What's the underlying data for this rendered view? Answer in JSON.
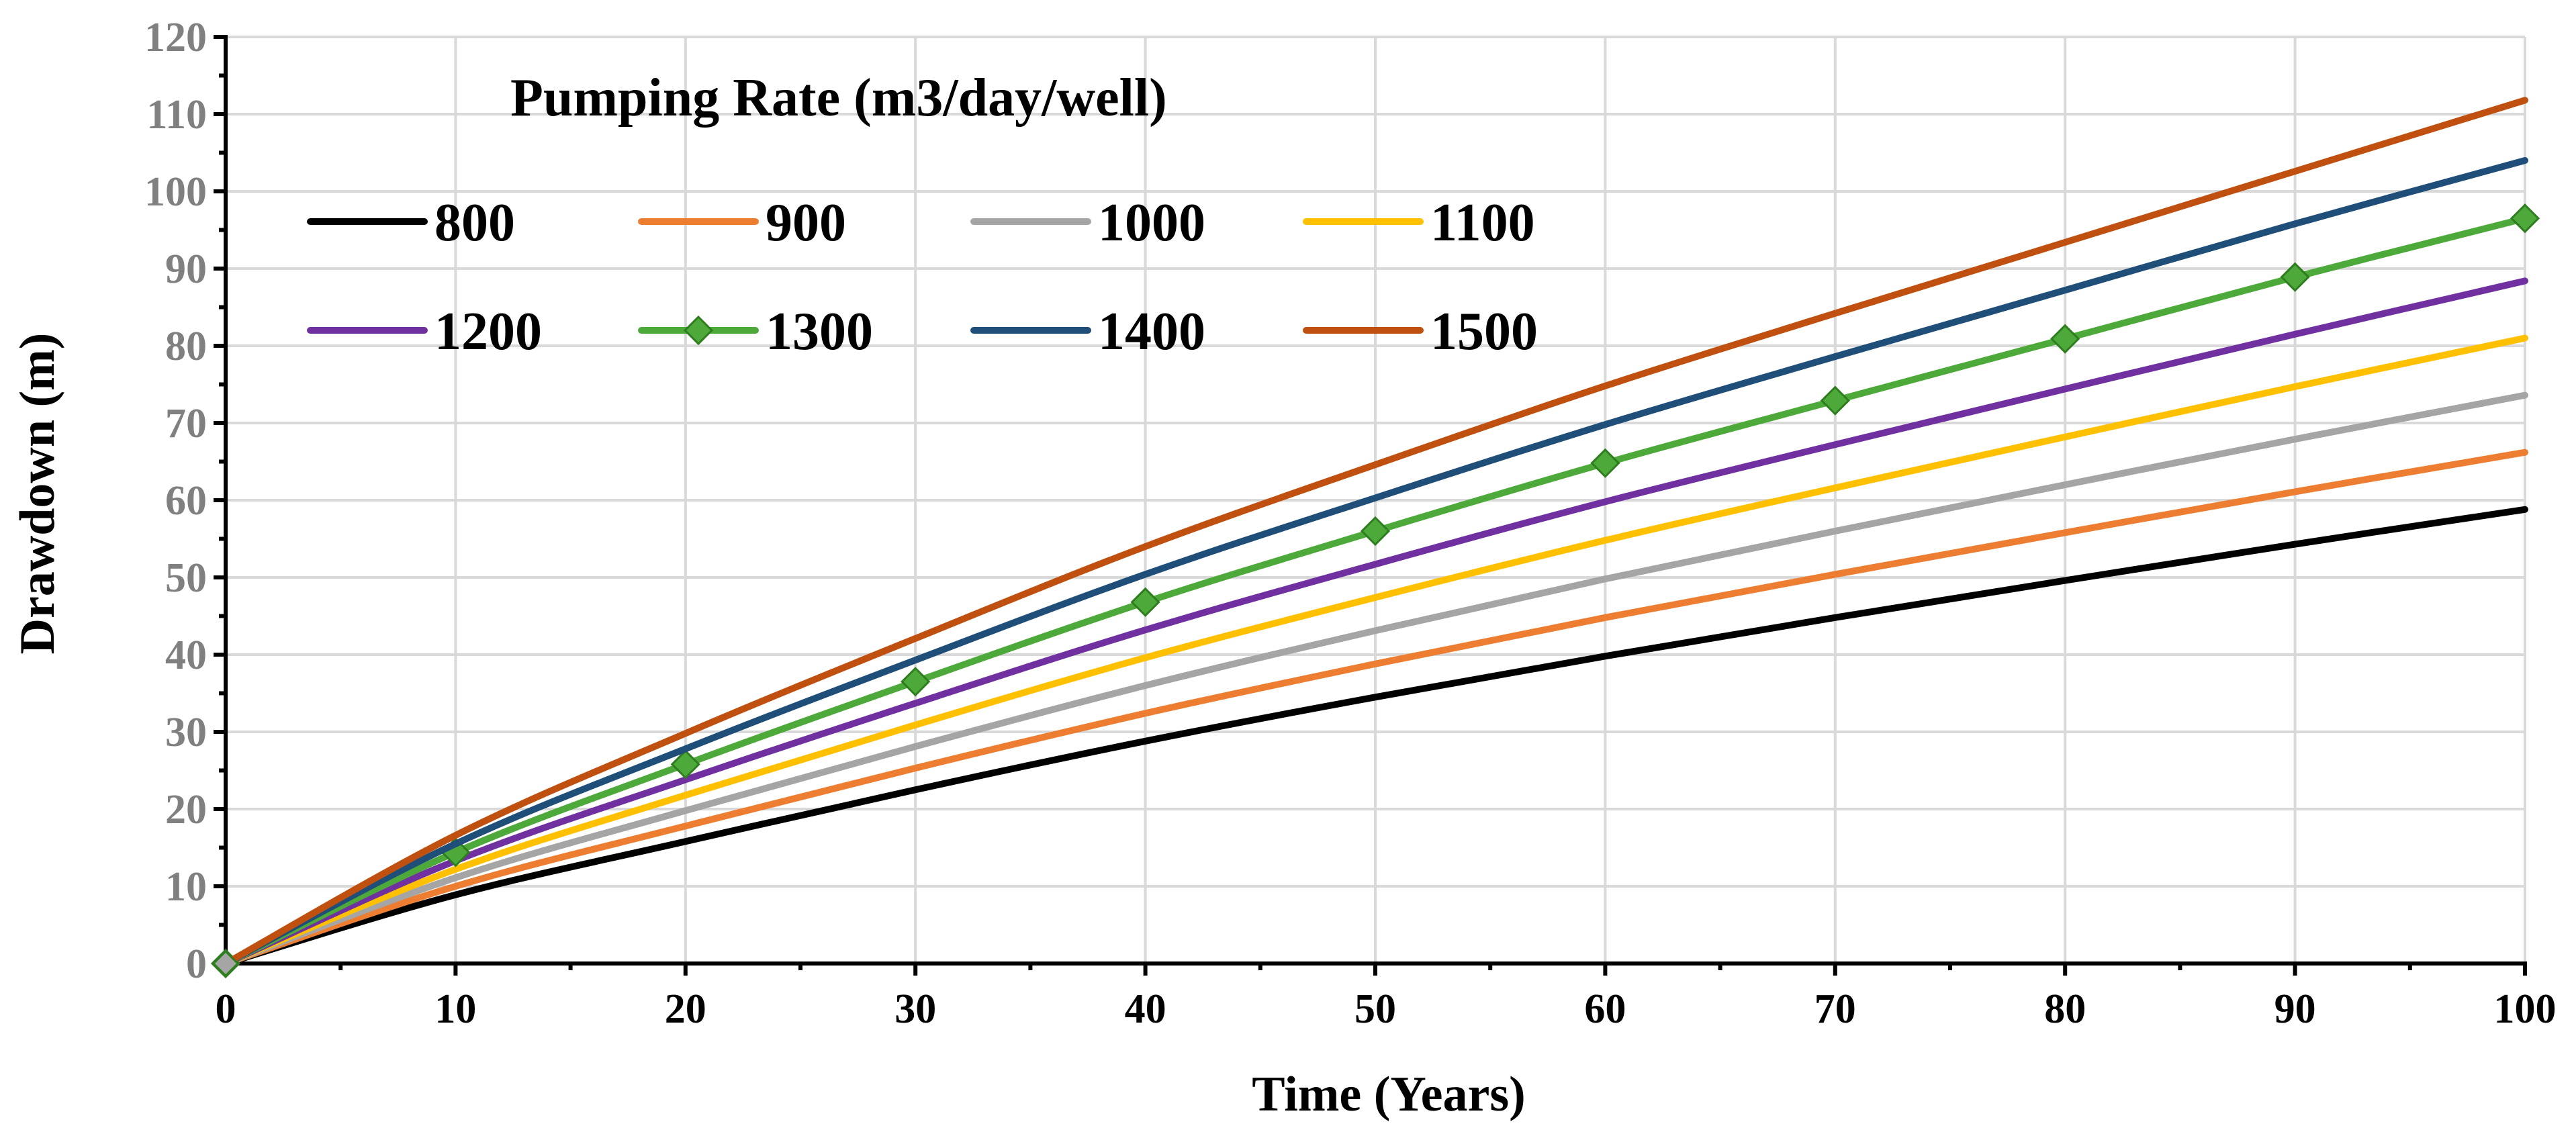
{
  "chart_data": {
    "type": "line",
    "title": "",
    "xlabel": "Time (Years)",
    "ylabel": "Drawdown (m)",
    "xlim": [
      0,
      100
    ],
    "ylim": [
      0,
      120
    ],
    "x_ticks": [
      0,
      10,
      20,
      30,
      40,
      50,
      60,
      70,
      80,
      90,
      100
    ],
    "y_ticks": [
      0,
      10,
      20,
      30,
      40,
      50,
      60,
      70,
      80,
      90,
      100,
      110,
      120
    ],
    "grid": true,
    "legend": {
      "title": "Pumping Rate (m3/day/well)",
      "placement": "top-left",
      "columns": 4
    },
    "x": [
      0,
      10,
      20,
      30,
      40,
      50,
      60,
      70,
      80,
      90,
      100
    ],
    "series": [
      {
        "name": "800",
        "color": "#000000",
        "marker": "none",
        "values": [
          0,
          8.9,
          15.8,
          22.5,
          28.8,
          34.5,
          39.8,
          44.8,
          49.6,
          54.3,
          58.8
        ]
      },
      {
        "name": "900",
        "color": "#ed7d31",
        "marker": "none",
        "values": [
          0,
          10.0,
          17.8,
          25.3,
          32.4,
          38.8,
          44.8,
          50.4,
          55.8,
          61.1,
          66.2
        ]
      },
      {
        "name": "1000",
        "color": "#a5a5a5",
        "marker": "none",
        "values": [
          0,
          11.1,
          19.8,
          28.1,
          36.0,
          43.1,
          49.8,
          56.0,
          62.0,
          67.9,
          73.6
        ]
      },
      {
        "name": "1100",
        "color": "#ffc000",
        "marker": "none",
        "values": [
          0,
          12.2,
          21.8,
          30.9,
          39.6,
          47.4,
          54.8,
          61.6,
          68.2,
          74.7,
          81.0
        ]
      },
      {
        "name": "1200",
        "color": "#7030a0",
        "marker": "none",
        "values": [
          0,
          13.3,
          23.8,
          33.7,
          43.2,
          51.7,
          59.8,
          67.2,
          74.4,
          81.5,
          88.4
        ]
      },
      {
        "name": "1300",
        "color": "#4daa3a",
        "marker": "diamond",
        "values": [
          0,
          14.4,
          25.8,
          36.5,
          46.8,
          56.0,
          64.8,
          72.9,
          80.9,
          88.9,
          96.5
        ]
      },
      {
        "name": "1400",
        "color": "#1f4e79",
        "marker": "none",
        "values": [
          0,
          15.5,
          27.8,
          39.3,
          50.4,
          60.3,
          69.8,
          78.6,
          87.2,
          95.8,
          104.0
        ]
      },
      {
        "name": "1500",
        "color": "#c0500f",
        "marker": "none",
        "values": [
          0,
          16.6,
          29.8,
          42.1,
          54.0,
          64.6,
          74.8,
          84.2,
          93.4,
          102.6,
          111.8
        ]
      }
    ]
  }
}
